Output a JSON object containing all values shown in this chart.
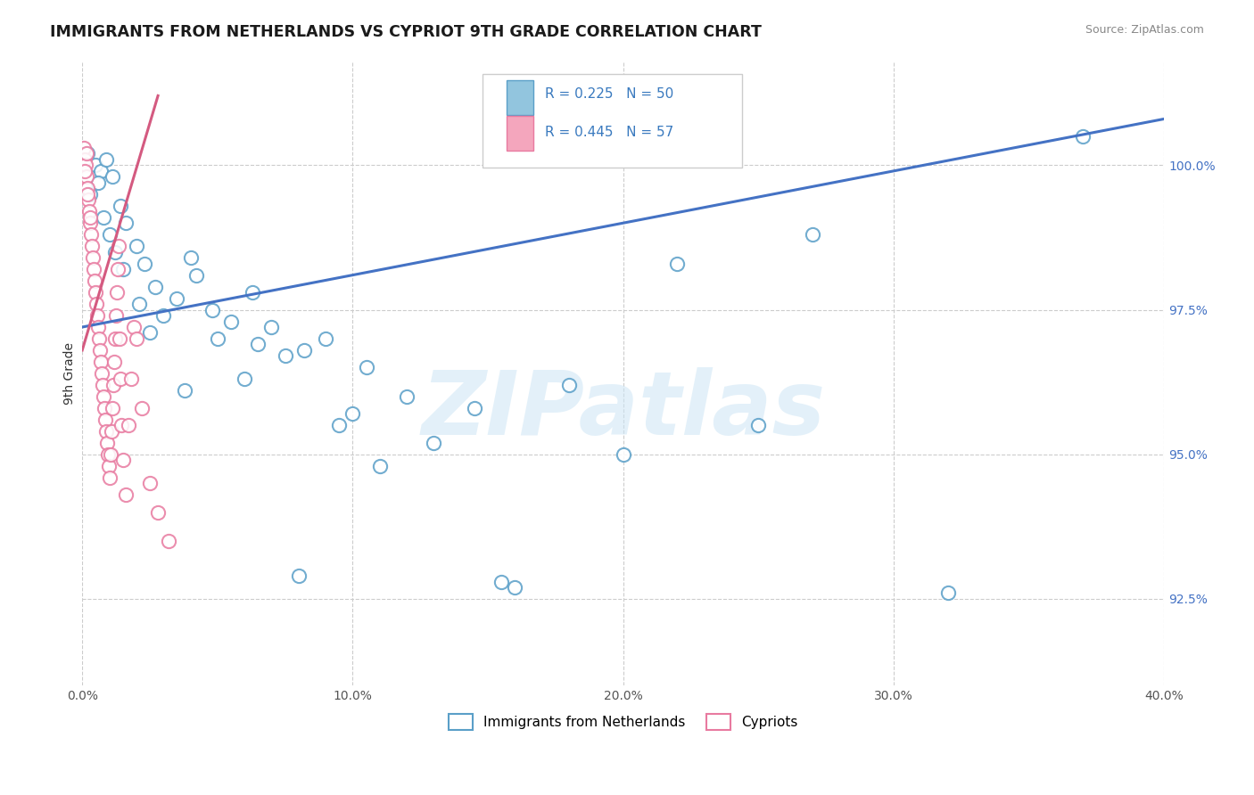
{
  "title": "IMMIGRANTS FROM NETHERLANDS VS CYPRIOT 9TH GRADE CORRELATION CHART",
  "source_text": "Source: ZipAtlas.com",
  "ylabel_text": "9th Grade",
  "x_min": 0.0,
  "x_max": 40.0,
  "y_min": 91.0,
  "y_max": 101.8,
  "yticks": [
    92.5,
    95.0,
    97.5,
    100.0
  ],
  "ytick_labels": [
    "92.5%",
    "95.0%",
    "97.5%",
    "100.0%"
  ],
  "xticks": [
    0.0,
    10.0,
    20.0,
    30.0,
    40.0
  ],
  "xtick_labels": [
    "0.0%",
    "10.0%",
    "20.0%",
    "30.0%",
    "40.0%"
  ],
  "blue_color": "#92c5de",
  "pink_color": "#f4a6bd",
  "blue_edge_color": "#5a9fc8",
  "pink_edge_color": "#e87aa0",
  "blue_line_color": "#4472c4",
  "pink_line_color": "#d45a80",
  "legend_label_blue": "Immigrants from Netherlands",
  "legend_label_pink": "Cypriots",
  "watermark": "ZIPatlas",
  "background_color": "#ffffff",
  "grid_color": "#cccccc",
  "blue_line_x0": 0.0,
  "blue_line_y0": 97.2,
  "blue_line_x1": 40.0,
  "blue_line_y1": 100.8,
  "pink_line_x0": 0.0,
  "pink_line_y0": 96.8,
  "pink_line_x1": 2.8,
  "pink_line_y1": 101.2,
  "blue_pts_x": [
    0.2,
    0.5,
    0.7,
    0.9,
    1.1,
    1.4,
    1.6,
    2.0,
    2.3,
    2.7,
    3.5,
    4.2,
    4.8,
    5.5,
    6.3,
    7.0,
    8.2,
    9.0,
    10.5,
    12.0,
    14.5,
    18.0,
    27.0,
    37.0,
    0.3,
    0.6,
    1.0,
    1.5,
    2.1,
    3.0,
    4.0,
    5.0,
    6.0,
    7.5,
    9.5,
    11.0,
    13.0,
    15.5,
    20.0,
    25.0,
    32.0,
    0.8,
    1.2,
    2.5,
    3.8,
    6.5,
    8.0,
    10.0,
    16.0,
    22.0
  ],
  "blue_pts_y": [
    100.2,
    100.0,
    99.9,
    100.1,
    99.8,
    99.3,
    99.0,
    98.6,
    98.3,
    97.9,
    97.7,
    98.1,
    97.5,
    97.3,
    97.8,
    97.2,
    96.8,
    97.0,
    96.5,
    96.0,
    95.8,
    96.2,
    98.8,
    100.5,
    99.5,
    99.7,
    98.8,
    98.2,
    97.6,
    97.4,
    98.4,
    97.0,
    96.3,
    96.7,
    95.5,
    94.8,
    95.2,
    92.8,
    95.0,
    95.5,
    92.6,
    99.1,
    98.5,
    97.1,
    96.1,
    96.9,
    92.9,
    95.7,
    92.7,
    98.3
  ],
  "pink_pts_x": [
    0.05,
    0.08,
    0.12,
    0.15,
    0.18,
    0.22,
    0.25,
    0.28,
    0.32,
    0.35,
    0.38,
    0.42,
    0.45,
    0.48,
    0.52,
    0.55,
    0.58,
    0.62,
    0.65,
    0.68,
    0.72,
    0.75,
    0.78,
    0.82,
    0.85,
    0.88,
    0.92,
    0.95,
    0.98,
    1.02,
    1.05,
    1.08,
    1.12,
    1.15,
    1.18,
    1.22,
    1.25,
    1.28,
    1.32,
    1.35,
    1.38,
    1.42,
    1.45,
    1.5,
    1.6,
    1.7,
    1.8,
    1.9,
    2.0,
    2.2,
    2.5,
    2.8,
    3.2,
    0.1,
    0.2,
    0.3,
    0.15
  ],
  "pink_pts_y": [
    100.3,
    100.1,
    100.0,
    99.8,
    99.6,
    99.4,
    99.2,
    99.0,
    98.8,
    98.6,
    98.4,
    98.2,
    98.0,
    97.8,
    97.6,
    97.4,
    97.2,
    97.0,
    96.8,
    96.6,
    96.4,
    96.2,
    96.0,
    95.8,
    95.6,
    95.4,
    95.2,
    95.0,
    94.8,
    94.6,
    95.0,
    95.4,
    95.8,
    96.2,
    96.6,
    97.0,
    97.4,
    97.8,
    98.2,
    98.6,
    97.0,
    96.3,
    95.5,
    94.9,
    94.3,
    95.5,
    96.3,
    97.2,
    97.0,
    95.8,
    94.5,
    94.0,
    93.5,
    99.9,
    99.5,
    99.1,
    100.2
  ]
}
